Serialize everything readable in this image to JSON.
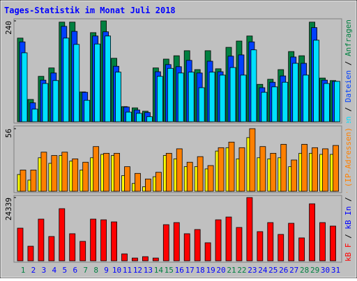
{
  "chart_data": [
    {
      "type": "bar",
      "title": "Tages-Statistik im Monat Juli 2018",
      "legend_separator": "/",
      "ylim": [
        0,
        240
      ],
      "yticks": [
        240
      ],
      "series": [
        {
          "name": "Anfragen",
          "color": "#008040",
          "values": [
            199,
            53,
            108,
            128,
            237,
            237,
            71,
            212,
            240,
            151,
            36,
            33,
            25,
            128,
            149,
            157,
            169,
            124,
            169,
            126,
            177,
            192,
            204,
            89,
            101,
            124,
            167,
            157,
            237,
            104,
            98
          ]
        },
        {
          "name": "Dateien",
          "color": "#0040ff",
          "values": [
            190,
            45,
            99,
            116,
            227,
            215,
            70,
            204,
            214,
            132,
            35,
            28,
            22,
            119,
            136,
            131,
            146,
            116,
            144,
            119,
            156,
            159,
            190,
            81,
            94,
            109,
            154,
            139,
            224,
            99,
            96
          ]
        },
        {
          "name": "Seiten",
          "color": "#00e0ff",
          "values": [
            164,
            30,
            91,
            98,
            199,
            184,
            51,
            185,
            204,
            118,
            23,
            20,
            12,
            108,
            127,
            116,
            118,
            81,
            118,
            111,
            129,
            111,
            171,
            70,
            83,
            94,
            139,
            111,
            194,
            91,
            96
          ]
        }
      ]
    },
    {
      "type": "bar",
      "ylim": [
        0,
        56
      ],
      "yticks": [
        56
      ],
      "series": [
        {
          "name": "Besuche",
          "color": "#ffff00",
          "values": [
            15,
            10,
            30,
            25,
            32,
            27,
            19,
            30,
            33,
            32,
            14,
            7,
            4,
            13,
            32,
            29,
            22,
            22,
            20,
            36,
            39,
            29,
            48,
            30,
            29,
            30,
            22,
            34,
            34,
            33,
            33
          ]
        },
        {
          "name": "Rechner (IP-Adressen)",
          "color": "#ff8000",
          "values": [
            19,
            19,
            35,
            32,
            35,
            29,
            26,
            40,
            34,
            34,
            22,
            16,
            11,
            17,
            34,
            38,
            26,
            31,
            23,
            39,
            44,
            39,
            56,
            40,
            34,
            42,
            28,
            42,
            39,
            38,
            41
          ]
        }
      ]
    },
    {
      "type": "bar",
      "ylim": [
        0,
        24339
      ],
      "yticks": [
        24339
      ],
      "categories": [
        "1",
        "2",
        "3",
        "4",
        "5",
        "6",
        "7",
        "8",
        "9",
        "10",
        "11",
        "12",
        "13",
        "14",
        "15",
        "16",
        "17",
        "18",
        "19",
        "20",
        "21",
        "22",
        "23",
        "24",
        "25",
        "26",
        "27",
        "28",
        "29",
        "30",
        "31"
      ],
      "category_colors": [
        "#008040",
        "#0000ff",
        "#0000ff",
        "#0000ff",
        "#0000ff",
        "#0000ff",
        "#008040",
        "#008040",
        "#0000ff",
        "#0000ff",
        "#0000ff",
        "#0000ff",
        "#0000ff",
        "#008040",
        "#008040",
        "#0000ff",
        "#0000ff",
        "#0000ff",
        "#0000ff",
        "#0000ff",
        "#008040",
        "#008040",
        "#0000ff",
        "#0000ff",
        "#0000ff",
        "#0000ff",
        "#0000ff",
        "#008040",
        "#008040",
        "#0000ff",
        "#0000ff"
      ],
      "series": [
        {
          "name": "kB F",
          "color": "#ff0000",
          "values": [
            12570,
            5617,
            16048,
            9361,
            20060,
            10431,
            7489,
            16048,
            15780,
            14978,
            2675,
            1070,
            1605,
            1070,
            13908,
            14710,
            10431,
            12036,
            6954,
            15780,
            16850,
            12838,
            24339,
            11233,
            14710,
            10163,
            14443,
            8826,
            21932,
            14710,
            13373
          ]
        }
      ],
      "legend_extra": [
        {
          "name": "kB In",
          "color": "#0000ff"
        },
        {
          "name": "kB Out",
          "color": "#008040"
        }
      ]
    }
  ]
}
